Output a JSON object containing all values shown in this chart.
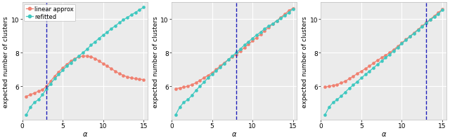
{
  "panel1": {
    "vline": 3,
    "ylim": [
      4.0,
      11.0
    ],
    "yticks": [
      6,
      8,
      10
    ],
    "xlim": [
      0,
      15.5
    ],
    "xticks": [
      0,
      5,
      10,
      15
    ],
    "linear_approx_x": [
      0.5,
      1.0,
      1.5,
      2.0,
      2.5,
      3.0,
      3.5,
      4.0,
      4.5,
      5.0,
      5.5,
      6.0,
      6.5,
      7.0,
      7.5,
      8.0,
      8.5,
      9.0,
      9.5,
      10.0,
      10.5,
      11.0,
      11.5,
      12.0,
      12.5,
      13.0,
      13.5,
      14.0,
      14.5,
      15.0
    ],
    "linear_approx_y": [
      5.4,
      5.5,
      5.6,
      5.7,
      5.8,
      6.0,
      6.3,
      6.6,
      6.85,
      7.1,
      7.3,
      7.5,
      7.65,
      7.75,
      7.8,
      7.8,
      7.75,
      7.65,
      7.5,
      7.35,
      7.2,
      7.05,
      6.9,
      6.75,
      6.65,
      6.55,
      6.5,
      6.45,
      6.42,
      6.4
    ],
    "refitted_x": [
      0.5,
      1.0,
      1.5,
      2.0,
      2.5,
      3.0,
      3.5,
      4.0,
      4.5,
      5.0,
      5.5,
      6.0,
      6.5,
      7.0,
      7.5,
      8.0,
      8.5,
      9.0,
      9.5,
      10.0,
      10.5,
      11.0,
      11.5,
      12.0,
      12.5,
      13.0,
      13.5,
      14.0,
      14.5,
      15.0
    ],
    "refitted_y": [
      4.3,
      4.75,
      5.05,
      5.2,
      5.5,
      5.85,
      6.15,
      6.45,
      6.7,
      6.95,
      7.2,
      7.4,
      7.6,
      7.8,
      8.0,
      8.2,
      8.45,
      8.65,
      8.85,
      9.05,
      9.22,
      9.42,
      9.6,
      9.78,
      9.95,
      10.1,
      10.25,
      10.4,
      10.55,
      10.7
    ],
    "show_legend": true
  },
  "panel2": {
    "vline": 8,
    "ylim": [
      4.0,
      11.0
    ],
    "yticks": [
      6,
      8,
      10
    ],
    "xlim": [
      0,
      15.5
    ],
    "xticks": [
      0,
      5,
      10,
      15
    ],
    "linear_approx_x": [
      0.5,
      1.0,
      1.5,
      2.0,
      2.5,
      3.0,
      3.5,
      4.0,
      4.5,
      5.0,
      5.5,
      6.0,
      6.5,
      7.0,
      7.5,
      8.0,
      8.5,
      9.0,
      9.5,
      10.0,
      10.5,
      11.0,
      11.5,
      12.0,
      12.5,
      13.0,
      13.5,
      14.0,
      14.5,
      15.0
    ],
    "linear_approx_y": [
      5.85,
      5.9,
      5.95,
      6.0,
      6.1,
      6.2,
      6.35,
      6.5,
      6.65,
      6.8,
      7.0,
      7.2,
      7.4,
      7.58,
      7.75,
      7.9,
      8.1,
      8.3,
      8.5,
      8.7,
      8.9,
      9.1,
      9.3,
      9.5,
      9.7,
      9.9,
      10.1,
      10.3,
      10.5,
      10.65
    ],
    "refitted_x": [
      0.5,
      1.0,
      1.5,
      2.0,
      2.5,
      3.0,
      3.5,
      4.0,
      4.5,
      5.0,
      5.5,
      6.0,
      6.5,
      7.0,
      7.5,
      8.0,
      8.5,
      9.0,
      9.5,
      10.0,
      10.5,
      11.0,
      11.5,
      12.0,
      12.5,
      13.0,
      13.5,
      14.0,
      14.5,
      15.0
    ],
    "refitted_y": [
      4.3,
      4.75,
      5.05,
      5.2,
      5.45,
      5.75,
      6.0,
      6.25,
      6.5,
      6.72,
      6.92,
      7.12,
      7.35,
      7.58,
      7.8,
      8.0,
      8.22,
      8.45,
      8.65,
      8.85,
      9.05,
      9.22,
      9.42,
      9.58,
      9.72,
      9.9,
      10.05,
      10.2,
      10.4,
      10.6
    ],
    "show_legend": false
  },
  "panel3": {
    "vline": 13,
    "ylim": [
      4.0,
      11.0
    ],
    "yticks": [
      6,
      8,
      10
    ],
    "xlim": [
      0,
      15.5
    ],
    "xticks": [
      0,
      5,
      10,
      15
    ],
    "linear_approx_x": [
      0.5,
      1.0,
      1.5,
      2.0,
      2.5,
      3.0,
      3.5,
      4.0,
      4.5,
      5.0,
      5.5,
      6.0,
      6.5,
      7.0,
      7.5,
      8.0,
      8.5,
      9.0,
      9.5,
      10.0,
      10.5,
      11.0,
      11.5,
      12.0,
      12.5,
      13.0,
      13.5,
      14.0,
      14.5,
      15.0
    ],
    "linear_approx_y": [
      5.95,
      6.0,
      6.05,
      6.1,
      6.2,
      6.3,
      6.45,
      6.6,
      6.75,
      6.9,
      7.05,
      7.2,
      7.38,
      7.55,
      7.7,
      7.85,
      8.0,
      8.18,
      8.38,
      8.58,
      8.78,
      8.98,
      9.18,
      9.38,
      9.58,
      9.78,
      9.98,
      10.18,
      10.38,
      10.58
    ],
    "refitted_x": [
      0.5,
      1.0,
      1.5,
      2.0,
      2.5,
      3.0,
      3.5,
      4.0,
      4.5,
      5.0,
      5.5,
      6.0,
      6.5,
      7.0,
      7.5,
      8.0,
      8.5,
      9.0,
      9.5,
      10.0,
      10.5,
      11.0,
      11.5,
      12.0,
      12.5,
      13.0,
      13.5,
      14.0,
      14.5,
      15.0
    ],
    "refitted_y": [
      4.3,
      4.75,
      5.05,
      5.2,
      5.42,
      5.65,
      5.88,
      6.08,
      6.28,
      6.5,
      6.7,
      6.9,
      7.1,
      7.3,
      7.5,
      7.7,
      7.9,
      8.1,
      8.32,
      8.55,
      8.75,
      8.95,
      9.15,
      9.35,
      9.55,
      9.75,
      9.95,
      10.12,
      10.3,
      10.55
    ],
    "show_legend": false
  },
  "color_linear": "#F08070",
  "color_refitted": "#3EC8C0",
  "color_vline": "#2020BB",
  "bg_color": "#EBEBEB",
  "ylabel": "expected number of clusters",
  "xlabel": "α",
  "legend_labels": [
    "linear approx",
    "refitted"
  ],
  "marker_size": 3.0,
  "linewidth": 0.9,
  "title_fontsize": 7,
  "tick_fontsize": 6.5,
  "label_fontsize": 7.0,
  "ylabel_fontsize": 6.5
}
